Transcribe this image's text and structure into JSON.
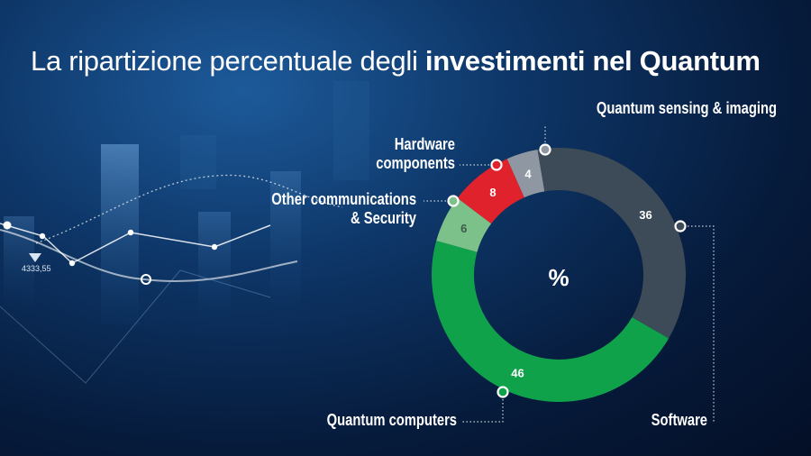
{
  "title": {
    "regular": "La ripartizione percentuale degli ",
    "bold": "investimenti nel Quantum"
  },
  "background": {
    "stock_value": "4333,55"
  },
  "colors": {
    "software": "#3d4a57",
    "quantum_computers": "#0fa24a",
    "other_communications_security": "#7cc08a",
    "hardware_components": "#e0222c",
    "quantum_sensing_imaging": "#8f98a2",
    "leader_line": "#c8d3e0"
  },
  "chart_data": {
    "type": "pie",
    "center_label": "%",
    "categories": [
      "Quantum sensing & imaging",
      "Software",
      "Quantum computers",
      "Other communications & Security",
      "Hardware components"
    ],
    "values": [
      4,
      36,
      46,
      6,
      8
    ],
    "slice_colors": [
      "#8f98a2",
      "#3d4a57",
      "#0fa24a",
      "#7cc08a",
      "#e0222c"
    ],
    "value_label_colors": [
      "#ffffff",
      "#ffffff",
      "#ffffff",
      "#3d5a48",
      "#ffffff"
    ],
    "donut": true,
    "start_angle_deg": -24,
    "direction": "clockwise"
  }
}
